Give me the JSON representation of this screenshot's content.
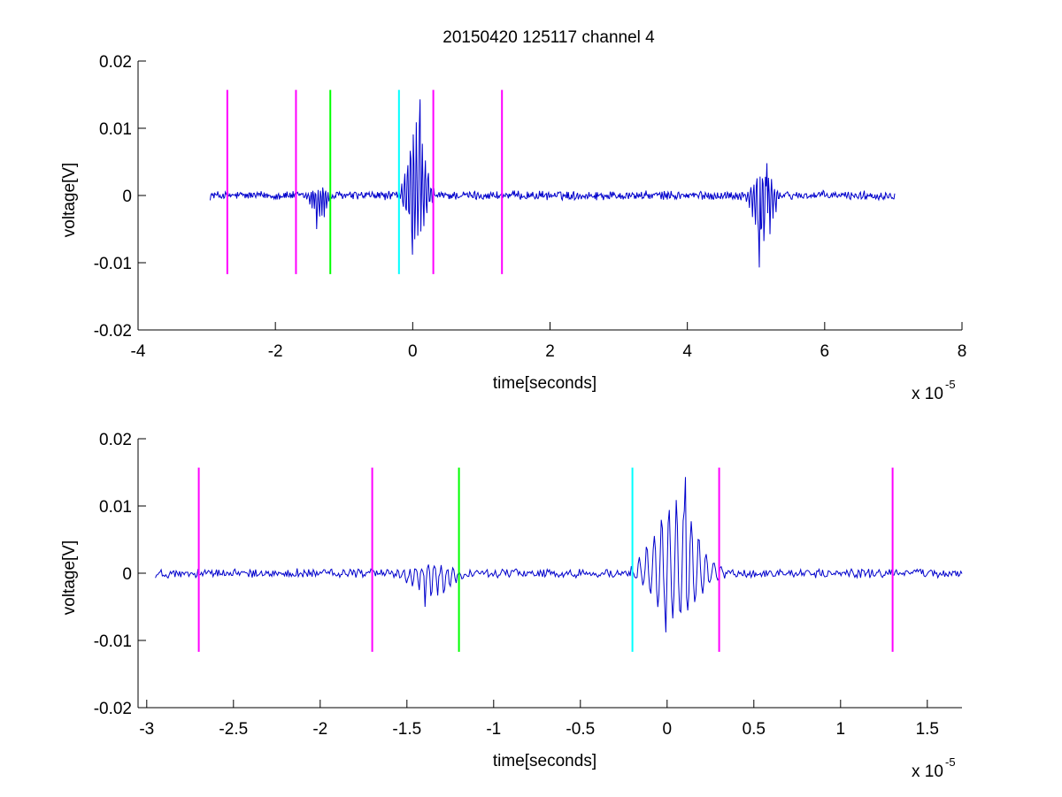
{
  "figure": {
    "title": "20150420 125117 channel 4"
  },
  "chart_data": [
    {
      "type": "line",
      "title": "20150420 125117 channel 4",
      "xlabel": "time[seconds]",
      "ylabel": "voltage[V]",
      "x_scale_label": "x 10",
      "x_scale_exponent": "-5",
      "xlim": [
        -4,
        8
      ],
      "ylim": [
        -0.02,
        0.02
      ],
      "x_ticks": [
        -4,
        -2,
        0,
        2,
        4,
        6,
        8
      ],
      "x_tick_labels": [
        "-4",
        "-2",
        "0",
        "2",
        "4",
        "6",
        "8"
      ],
      "y_ticks": [
        -0.02,
        -0.01,
        0,
        0.01,
        0.02
      ],
      "y_tick_labels": [
        "-0.02",
        "-0.01",
        "0",
        "0.01",
        "0.02"
      ],
      "grid": false,
      "signal": {
        "color": "#0000cc",
        "x_range": [
          -2.95,
          7.02
        ],
        "bursts": [
          {
            "center": -1.35,
            "width": 0.25,
            "amp_pos": 0.0012,
            "amp_neg": -0.005
          },
          {
            "center": 0.05,
            "width": 0.3,
            "amp_pos": 0.0143,
            "amp_neg": -0.0088
          },
          {
            "center": 5.1,
            "width": 0.3,
            "amp_pos": 0.0048,
            "amp_neg": -0.0107
          }
        ]
      },
      "markers": [
        {
          "x": -2.7,
          "color": "#ff00ff"
        },
        {
          "x": -1.7,
          "color": "#ff00ff"
        },
        {
          "x": -1.2,
          "color": "#00ff00"
        },
        {
          "x": -0.2,
          "color": "#00ffff"
        },
        {
          "x": 0.3,
          "color": "#ff00ff"
        },
        {
          "x": 1.3,
          "color": "#ff00ff"
        }
      ],
      "marker_range": [
        -0.0117,
        0.0157
      ]
    },
    {
      "type": "line",
      "xlabel": "time[seconds]",
      "ylabel": "voltage[V]",
      "x_scale_label": "x 10",
      "x_scale_exponent": "-5",
      "xlim": [
        -3.05,
        1.7
      ],
      "ylim": [
        -0.02,
        0.02
      ],
      "x_ticks": [
        -3,
        -2.5,
        -2,
        -1.5,
        -1,
        -0.5,
        0,
        0.5,
        1,
        1.5
      ],
      "x_tick_labels": [
        "-3",
        "-2.5",
        "-2",
        "-1.5",
        "-1",
        "-0.5",
        "0",
        "0.5",
        "1",
        "1.5"
      ],
      "y_ticks": [
        -0.02,
        -0.01,
        0,
        0.01,
        0.02
      ],
      "y_tick_labels": [
        "-0.02",
        "-0.01",
        "0",
        "0.01",
        "0.02"
      ],
      "grid": false,
      "signal": {
        "color": "#0000cc",
        "x_range": [
          -2.95,
          1.7
        ],
        "bursts": [
          {
            "center": -1.35,
            "width": 0.25,
            "amp_pos": 0.0012,
            "amp_neg": -0.005
          },
          {
            "center": 0.05,
            "width": 0.3,
            "amp_pos": 0.0143,
            "amp_neg": -0.0088
          }
        ]
      },
      "markers": [
        {
          "x": -2.7,
          "color": "#ff00ff"
        },
        {
          "x": -1.7,
          "color": "#ff00ff"
        },
        {
          "x": -1.2,
          "color": "#00ff00"
        },
        {
          "x": -0.2,
          "color": "#00ffff"
        },
        {
          "x": 0.3,
          "color": "#ff00ff"
        },
        {
          "x": 1.3,
          "color": "#ff00ff"
        }
      ],
      "marker_range": [
        -0.0117,
        0.0157
      ]
    }
  ]
}
